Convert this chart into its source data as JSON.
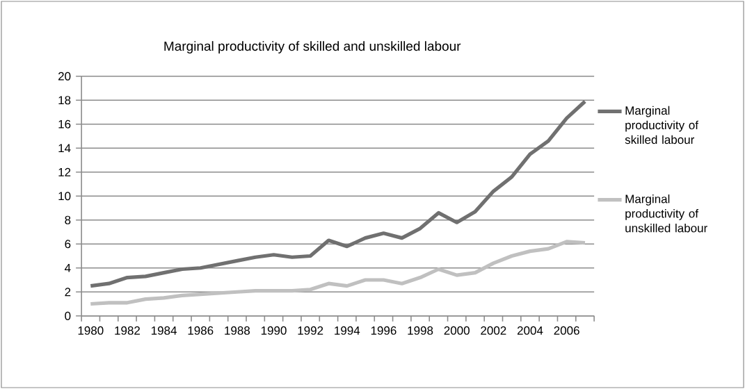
{
  "chart_data": {
    "type": "line",
    "title": "Marginal productivity of skilled and unskilled labour",
    "categories": [
      "1980",
      null,
      "1982",
      null,
      "1984",
      null,
      "1986",
      null,
      "1988",
      null,
      "1990",
      null,
      "1992",
      null,
      "1994",
      null,
      "1996",
      null,
      "1998",
      null,
      "2000",
      null,
      "2002",
      null,
      "2004",
      null,
      "2006",
      null
    ],
    "series": [
      {
        "name": "Marginal productivity of skilled labour",
        "color": "#707070",
        "values": [
          2.5,
          2.7,
          3.2,
          3.3,
          3.6,
          3.9,
          4.0,
          4.3,
          4.6,
          4.9,
          5.1,
          4.9,
          5.0,
          6.3,
          5.8,
          6.5,
          6.9,
          6.5,
          7.3,
          8.6,
          7.8,
          8.7,
          10.4,
          11.6,
          13.5,
          14.6,
          16.5,
          17.9
        ]
      },
      {
        "name": "Marginal productivity of unskilled labour",
        "color": "#c0c0c0",
        "values": [
          1.0,
          1.1,
          1.1,
          1.4,
          1.5,
          1.7,
          1.8,
          1.9,
          2.0,
          2.1,
          2.1,
          2.1,
          2.2,
          2.7,
          2.5,
          3.0,
          3.0,
          2.7,
          3.2,
          3.9,
          3.4,
          3.6,
          4.4,
          5.0,
          5.4,
          5.6,
          6.2,
          6.1
        ]
      }
    ],
    "ylim": [
      0,
      20
    ],
    "yticks": [
      0,
      2,
      4,
      6,
      8,
      10,
      12,
      14,
      16,
      18,
      20
    ],
    "grid": "y",
    "legend": "right",
    "marker": "none",
    "line_style": "solid"
  }
}
